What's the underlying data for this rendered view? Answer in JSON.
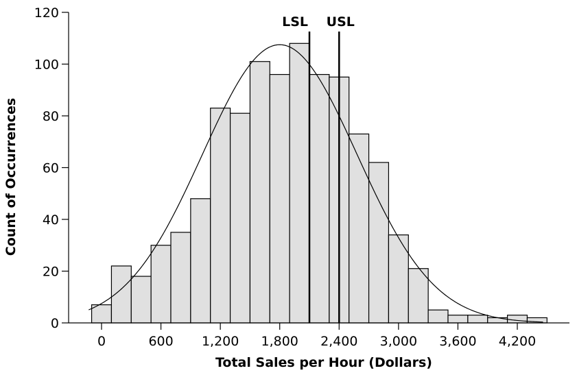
{
  "chart_data": {
    "type": "bar",
    "subtype": "histogram",
    "xlabel": "Total Sales per Hour (Dollars)",
    "ylabel": "Count of Occurrences",
    "x_ticks": [
      0,
      600,
      1200,
      1800,
      2400,
      3000,
      3600,
      4200
    ],
    "x_tick_labels": [
      "0",
      "600",
      "1,200",
      "1,800",
      "2,400",
      "3,000",
      "3,600",
      "4,200"
    ],
    "y_ticks": [
      0,
      20,
      40,
      60,
      80,
      100,
      120
    ],
    "y_tick_labels": [
      "0",
      "20",
      "40",
      "60",
      "80",
      "100",
      "120"
    ],
    "xlim": [
      -300,
      4500
    ],
    "ylim": [
      0,
      120
    ],
    "bin_width": 200,
    "bin_starts": [
      -100,
      100,
      300,
      500,
      700,
      900,
      1100,
      1300,
      1500,
      1700,
      1900,
      2100,
      2300,
      2500,
      2700,
      2900,
      3100,
      3300,
      3500,
      3700,
      3900,
      4100,
      4300
    ],
    "values": [
      7,
      22,
      18,
      30,
      35,
      48,
      83,
      81,
      101,
      96,
      108,
      96,
      95,
      73,
      62,
      34,
      21,
      5,
      3,
      3,
      2,
      3,
      2
    ],
    "bar_color": "#e0e0e0",
    "grid": false,
    "normal_curve": {
      "mean": 1800,
      "sd": 780,
      "peak": 107.5
    },
    "spec_limits": [
      {
        "label": "LSL",
        "value": 2100
      },
      {
        "label": "USL",
        "value": 2400
      }
    ]
  }
}
